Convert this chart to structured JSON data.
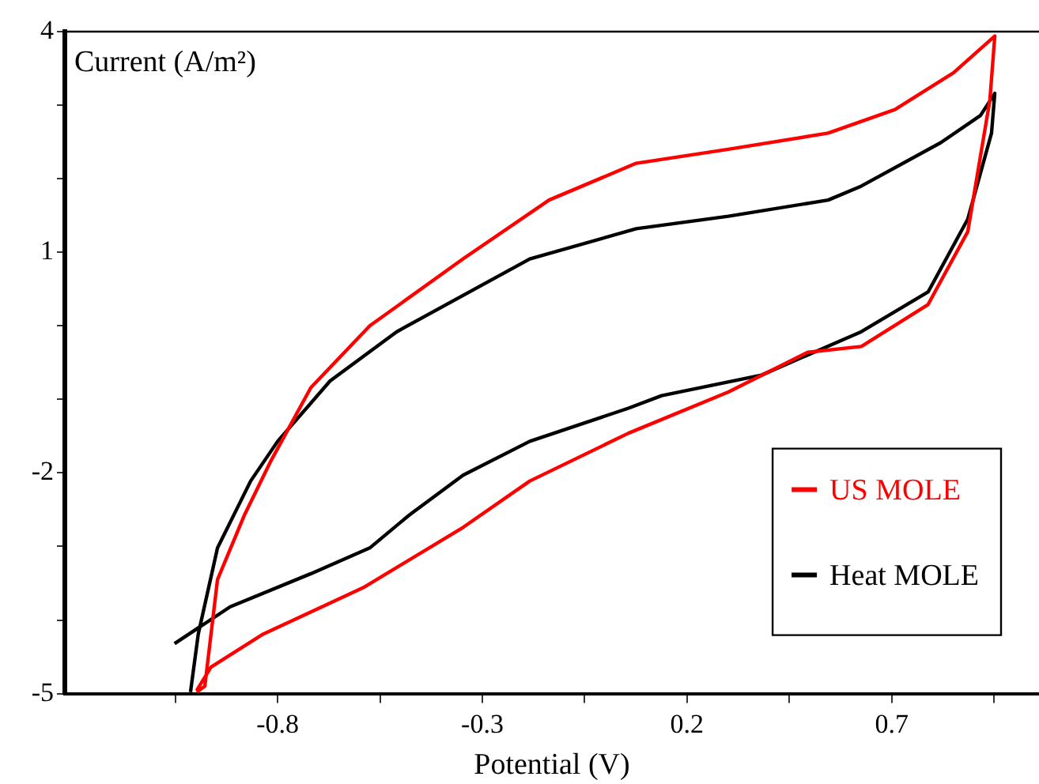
{
  "chart_data": {
    "type": "line",
    "xlabel": "Potential (V)",
    "ylabel": "Current (A/m²)",
    "xlim": [
      -1.32,
      1.06
    ],
    "xticks": [
      {
        "value": -1.05,
        "label": null
      },
      -0.8,
      {
        "value": -0.55,
        "label": null
      },
      -0.3,
      {
        "value": -0.05,
        "label": null
      },
      0.2,
      {
        "value": 0.45,
        "label": null
      },
      0.7,
      {
        "value": 0.95,
        "label": null
      }
    ],
    "ylim": [
      -5,
      4
    ],
    "yticks": [
      -5,
      {
        "value": -4,
        "label": null
      },
      {
        "value": -3,
        "label": null
      },
      -2,
      {
        "value": -1,
        "label": null
      },
      {
        "value": 0,
        "label": null
      },
      1,
      {
        "value": 2,
        "label": null
      },
      {
        "value": 3,
        "label": null
      },
      4
    ],
    "grid": false,
    "legend": "bottom right",
    "marker": "none",
    "line_style": "solid",
    "series": [
      {
        "name": "US MOLE",
        "color": "#ff0000",
        "x": [
          -0.998,
          -0.978,
          -0.947,
          -0.881,
          -0.816,
          -0.719,
          -0.575,
          -0.347,
          -0.137,
          0.076,
          0.301,
          0.545,
          0.708,
          0.851,
          0.952,
          0.94,
          0.886,
          0.789,
          0.626,
          0.495,
          0.301,
          0.057,
          -0.184,
          -0.347,
          -0.591,
          -0.835,
          -0.963,
          -0.998
        ],
        "values": [
          -4.98,
          -4.9,
          -3.45,
          -2.57,
          -1.83,
          -0.84,
          0.0,
          0.91,
          1.71,
          2.21,
          2.4,
          2.62,
          2.94,
          3.44,
          3.94,
          3.07,
          1.28,
          0.29,
          -0.28,
          -0.36,
          -0.9,
          -1.46,
          -2.11,
          -2.74,
          -3.56,
          -4.19,
          -4.64,
          -4.96
        ]
      },
      {
        "name": "Heat MOLE",
        "color": "#000000",
        "x": [
          -1.013,
          -0.994,
          -0.947,
          -0.866,
          -0.8,
          -0.672,
          -0.509,
          -0.184,
          0.076,
          0.301,
          0.545,
          0.626,
          0.82,
          0.917,
          0.952,
          0.944,
          0.886,
          0.789,
          0.626,
          0.382,
          0.138,
          0.057,
          -0.184,
          -0.347,
          -0.478,
          -0.575,
          -0.719,
          -0.916,
          -1.052
        ],
        "values": [
          -4.98,
          -4.19,
          -3.02,
          -2.11,
          -1.57,
          -0.75,
          -0.08,
          0.91,
          1.32,
          1.49,
          1.71,
          1.9,
          2.49,
          2.86,
          3.16,
          2.62,
          1.45,
          0.46,
          -0.08,
          -0.67,
          -0.95,
          -1.12,
          -1.57,
          -2.03,
          -2.57,
          -3.02,
          -3.37,
          -3.82,
          -4.32
        ]
      }
    ]
  }
}
